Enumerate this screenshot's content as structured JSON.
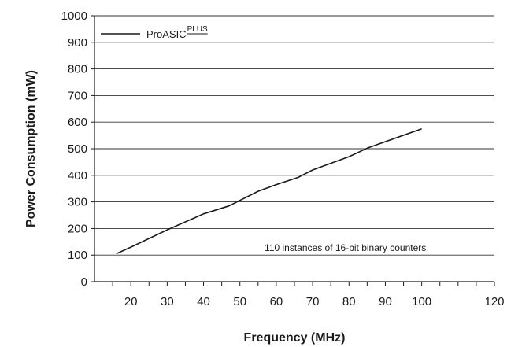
{
  "chart_data": {
    "type": "line",
    "title": "",
    "xlabel": "Frequency (MHz)",
    "ylabel": "Power Consumption (mW)",
    "xlim": [
      10,
      120
    ],
    "ylim": [
      0,
      1000
    ],
    "x_ticks": [
      20,
      30,
      40,
      50,
      60,
      70,
      80,
      90,
      100,
      120
    ],
    "y_ticks": [
      0,
      100,
      200,
      300,
      400,
      500,
      600,
      700,
      800,
      900,
      1000
    ],
    "grid": "horizontal",
    "legend_position": "top-left",
    "series": [
      {
        "name": "ProASIC",
        "name_superscript": "PLUS",
        "color": "#1a1a1a",
        "x": [
          16,
          20,
          30,
          40,
          47,
          55,
          60,
          66,
          70,
          80,
          85,
          100
        ],
        "y": [
          105,
          130,
          195,
          255,
          285,
          340,
          365,
          392,
          420,
          470,
          502,
          575
        ]
      }
    ],
    "annotations": [
      {
        "text": "110 instances of 16-bit binary counters",
        "x": 79,
        "y": 127
      }
    ]
  }
}
